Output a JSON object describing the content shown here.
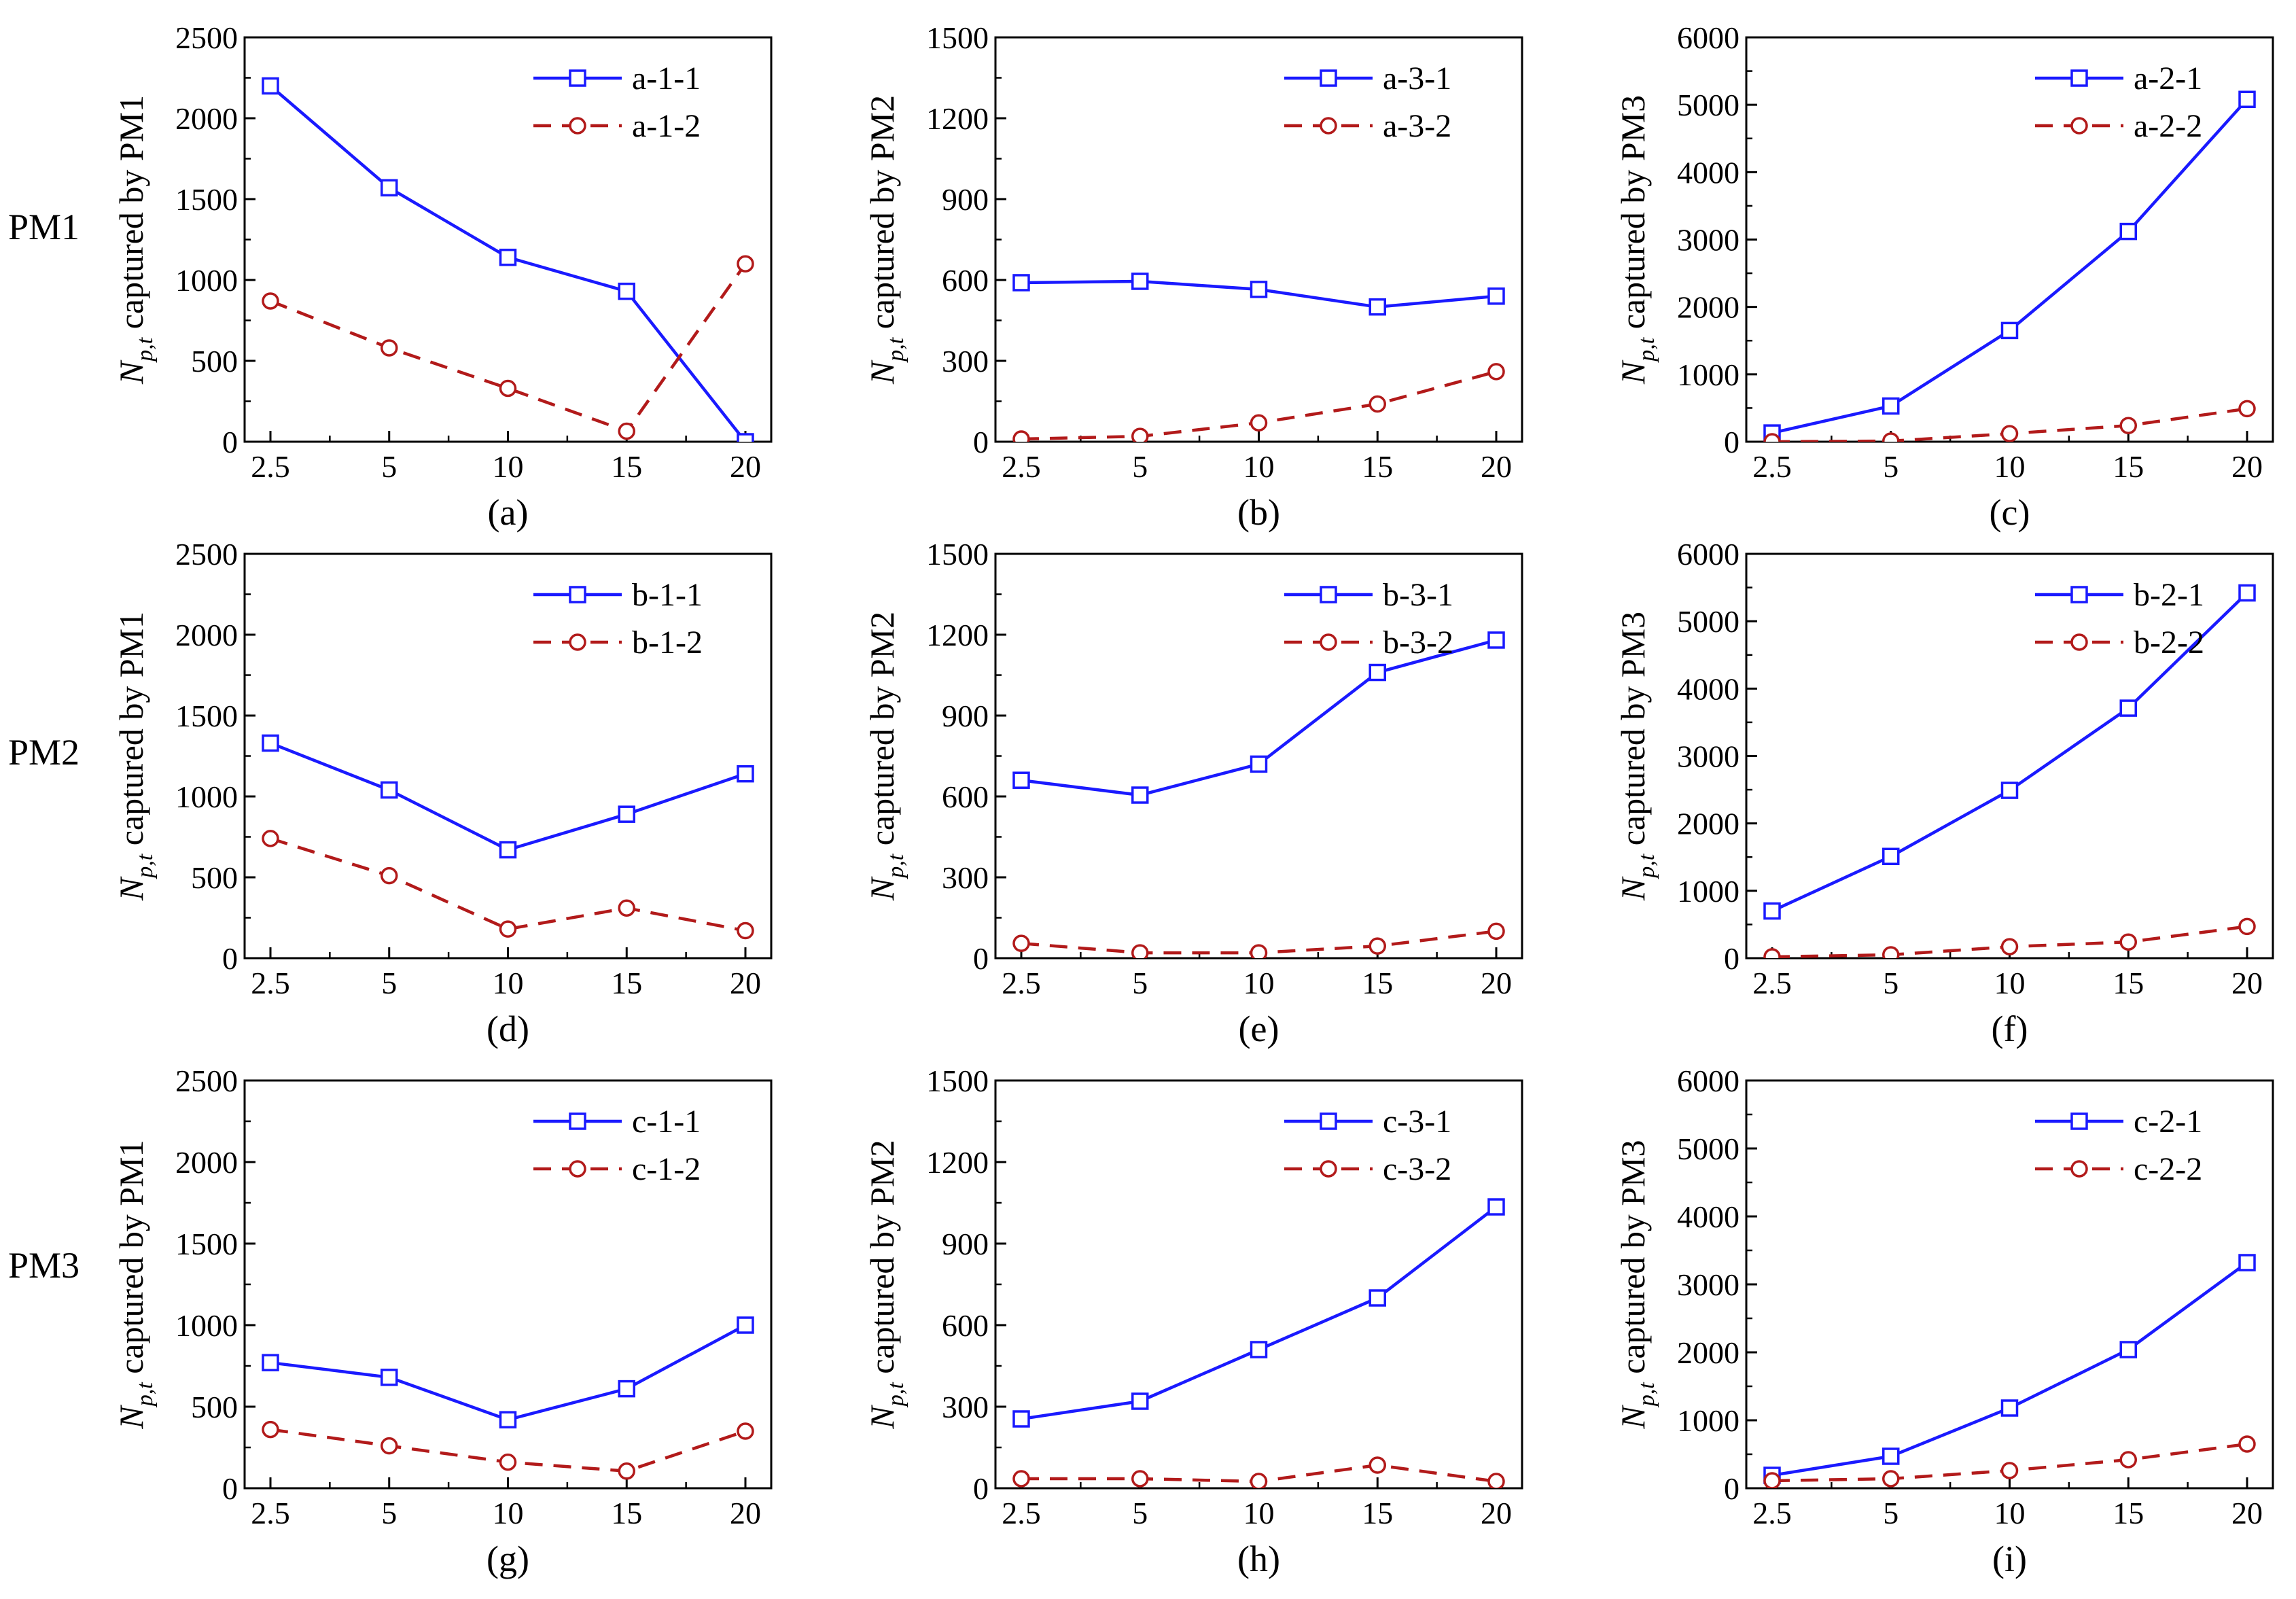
{
  "row_labels": [
    "PM1",
    "PM2",
    "PM3"
  ],
  "colors": {
    "series1": "#1a1aff",
    "series2": "#b21a1a",
    "axis": "#000000"
  },
  "chart_data": [
    {
      "id": "a",
      "type": "line",
      "panel_label": "(a)",
      "ylabel_pm": "PM1",
      "x": [
        "2.5",
        "5",
        "10",
        "15",
        "20"
      ],
      "ylim": [
        0,
        2500
      ],
      "yticks": [
        0,
        500,
        1000,
        1500,
        2000,
        2500
      ],
      "series": [
        {
          "name": "a-1-1",
          "values": [
            2200,
            1570,
            1140,
            930,
            0
          ]
        },
        {
          "name": "a-1-2",
          "values": [
            870,
            580,
            330,
            65,
            1100
          ]
        }
      ]
    },
    {
      "id": "d",
      "type": "line",
      "panel_label": "(d)",
      "ylabel_pm": "PM1",
      "x": [
        "2.5",
        "5",
        "10",
        "15",
        "20"
      ],
      "ylim": [
        0,
        2500
      ],
      "yticks": [
        0,
        500,
        1000,
        1500,
        2000,
        2500
      ],
      "series": [
        {
          "name": "b-1-1",
          "values": [
            1330,
            1040,
            670,
            890,
            1140
          ]
        },
        {
          "name": "b-1-2",
          "values": [
            740,
            510,
            180,
            310,
            170
          ]
        }
      ]
    },
    {
      "id": "g",
      "type": "line",
      "panel_label": "(g)",
      "ylabel_pm": "PM1",
      "x": [
        "2.5",
        "5",
        "10",
        "15",
        "20"
      ],
      "ylim": [
        0,
        2500
      ],
      "yticks": [
        0,
        500,
        1000,
        1500,
        2000,
        2500
      ],
      "series": [
        {
          "name": "c-1-1",
          "values": [
            770,
            680,
            420,
            610,
            1000
          ]
        },
        {
          "name": "c-1-2",
          "values": [
            360,
            260,
            160,
            105,
            350
          ]
        }
      ]
    },
    {
      "id": "b",
      "type": "line",
      "panel_label": "(b)",
      "ylabel_pm": "PM2",
      "x": [
        "2.5",
        "5",
        "10",
        "15",
        "20"
      ],
      "ylim": [
        0,
        1500
      ],
      "yticks": [
        0,
        300,
        600,
        900,
        1200,
        1500
      ],
      "series": [
        {
          "name": "a-3-1",
          "values": [
            590,
            595,
            565,
            500,
            540
          ]
        },
        {
          "name": "a-3-2",
          "values": [
            10,
            20,
            70,
            140,
            260
          ]
        }
      ]
    },
    {
      "id": "e",
      "type": "line",
      "panel_label": "(e)",
      "ylabel_pm": "PM2",
      "x": [
        "2.5",
        "5",
        "10",
        "15",
        "20"
      ],
      "ylim": [
        0,
        1500
      ],
      "yticks": [
        0,
        300,
        600,
        900,
        1200,
        1500
      ],
      "series": [
        {
          "name": "b-3-1",
          "values": [
            660,
            605,
            720,
            1060,
            1180
          ]
        },
        {
          "name": "b-3-2",
          "values": [
            55,
            20,
            20,
            45,
            100
          ]
        }
      ]
    },
    {
      "id": "h",
      "type": "line",
      "panel_label": "(h)",
      "ylabel_pm": "PM2",
      "x": [
        "2.5",
        "5",
        "10",
        "15",
        "20"
      ],
      "ylim": [
        0,
        1500
      ],
      "yticks": [
        0,
        300,
        600,
        900,
        1200,
        1500
      ],
      "series": [
        {
          "name": "c-3-1",
          "values": [
            255,
            320,
            510,
            700,
            1035
          ]
        },
        {
          "name": "c-3-2",
          "values": [
            35,
            35,
            25,
            85,
            25
          ]
        }
      ]
    },
    {
      "id": "c",
      "type": "line",
      "panel_label": "(c)",
      "ylabel_pm": "PM3",
      "x": [
        "2.5",
        "5",
        "10",
        "15",
        "20"
      ],
      "ylim": [
        0,
        6000
      ],
      "yticks": [
        0,
        1000,
        2000,
        3000,
        4000,
        5000,
        6000
      ],
      "series": [
        {
          "name": "a-2-1",
          "values": [
            130,
            530,
            1650,
            3120,
            5080
          ]
        },
        {
          "name": "a-2-2",
          "values": [
            0,
            10,
            120,
            240,
            490
          ]
        }
      ]
    },
    {
      "id": "f",
      "type": "line",
      "panel_label": "(f)",
      "ylabel_pm": "PM3",
      "x": [
        "2.5",
        "5",
        "10",
        "15",
        "20"
      ],
      "ylim": [
        0,
        6000
      ],
      "yticks": [
        0,
        1000,
        2000,
        3000,
        4000,
        5000,
        6000
      ],
      "series": [
        {
          "name": "b-2-1",
          "values": [
            700,
            1510,
            2490,
            3710,
            5420
          ]
        },
        {
          "name": "b-2-2",
          "values": [
            20,
            50,
            170,
            240,
            470
          ]
        }
      ]
    },
    {
      "id": "i",
      "type": "line",
      "panel_label": "(i)",
      "ylabel_pm": "PM3",
      "x": [
        "2.5",
        "5",
        "10",
        "15",
        "20"
      ],
      "ylim": [
        0,
        6000
      ],
      "yticks": [
        0,
        1000,
        2000,
        3000,
        4000,
        5000,
        6000
      ],
      "series": [
        {
          "name": "c-2-1",
          "values": [
            190,
            470,
            1180,
            2040,
            3320
          ]
        },
        {
          "name": "c-2-2",
          "values": [
            110,
            140,
            260,
            420,
            650
          ]
        }
      ]
    }
  ]
}
